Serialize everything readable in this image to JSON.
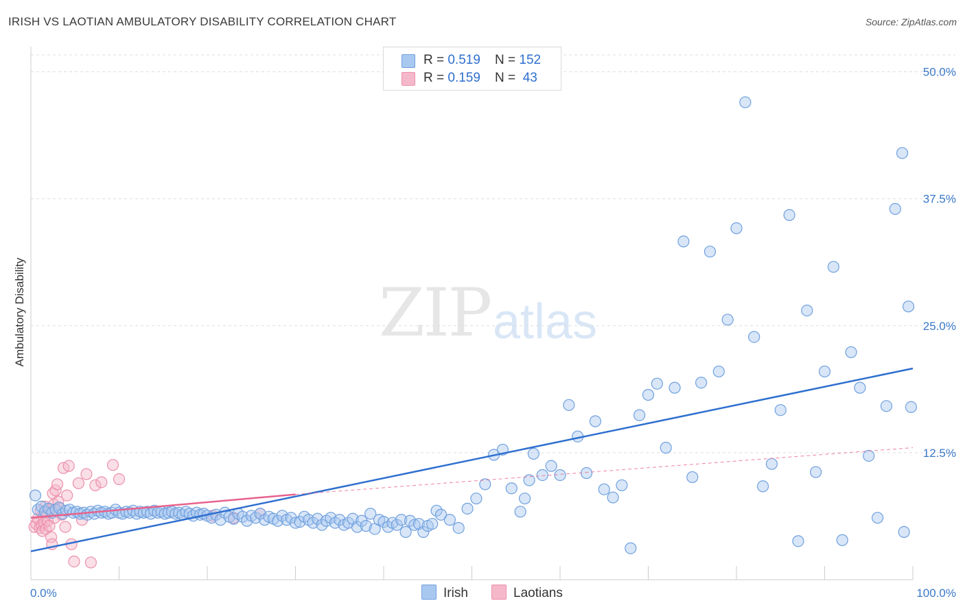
{
  "title": "IRISH VS LAOTIAN AMBULATORY DISABILITY CORRELATION CHART",
  "source": "Source: ZipAtlas.com",
  "watermark": {
    "zip": "ZIP",
    "atlas": "atlas"
  },
  "legend": {
    "rows": [
      {
        "r_label": "R = ",
        "r_value": "0.519",
        "n_label": "N = ",
        "n_value": "152",
        "color": "#a9c8f0"
      },
      {
        "r_label": "R = ",
        "r_value": "0.159",
        "n_label": "N = ",
        "n_value": " 43",
        "color": "#f5b8ca"
      }
    ]
  },
  "bottom_legend": {
    "irish": "Irish",
    "laotians": "Laotians"
  },
  "chart_data": {
    "type": "scatter",
    "title": "IRISH VS LAOTIAN AMBULATORY DISABILITY CORRELATION CHART",
    "xlabel": "",
    "ylabel": "Ambulatory Disability",
    "xlim": [
      0,
      100
    ],
    "ylim": [
      0,
      52
    ],
    "x_tick_labels": [
      "0.0%",
      "100.0%"
    ],
    "y_ticks": [
      12.5,
      25.0,
      37.5,
      50.0
    ],
    "y_tick_labels": [
      "12.5%",
      "25.0%",
      "37.5%",
      "50.0%"
    ],
    "grid": true,
    "series": [
      {
        "name": "Irish",
        "color": "#a9c8f0",
        "stroke": "#6fa0de",
        "trend": {
          "x": [
            0,
            100
          ],
          "y": [
            2.8,
            20.8
          ],
          "color": "#2e6fcf"
        },
        "points": [
          [
            0.5,
            8.3
          ],
          [
            0.8,
            6.9
          ],
          [
            1.2,
            7.2
          ],
          [
            1.6,
            6.7
          ],
          [
            2.0,
            7.0
          ],
          [
            2.4,
            6.6
          ],
          [
            2.8,
            6.9
          ],
          [
            3.2,
            7.1
          ],
          [
            3.6,
            6.5
          ],
          [
            4.0,
            6.8
          ],
          [
            4.4,
            6.9
          ],
          [
            4.8,
            6.6
          ],
          [
            5.2,
            6.7
          ],
          [
            5.6,
            6.5
          ],
          [
            6.0,
            6.6
          ],
          [
            6.4,
            6.4
          ],
          [
            6.8,
            6.7
          ],
          [
            7.2,
            6.5
          ],
          [
            7.6,
            6.8
          ],
          [
            8.0,
            6.6
          ],
          [
            8.4,
            6.7
          ],
          [
            8.8,
            6.5
          ],
          [
            9.2,
            6.6
          ],
          [
            9.6,
            6.9
          ],
          [
            10.0,
            6.6
          ],
          [
            10.4,
            6.5
          ],
          [
            10.8,
            6.7
          ],
          [
            11.2,
            6.6
          ],
          [
            11.6,
            6.8
          ],
          [
            12.0,
            6.5
          ],
          [
            12.4,
            6.7
          ],
          [
            12.8,
            6.6
          ],
          [
            13.2,
            6.7
          ],
          [
            13.6,
            6.5
          ],
          [
            14.0,
            6.8
          ],
          [
            14.4,
            6.6
          ],
          [
            14.8,
            6.7
          ],
          [
            15.2,
            6.5
          ],
          [
            15.6,
            6.6
          ],
          [
            16.0,
            6.7
          ],
          [
            16.4,
            6.5
          ],
          [
            16.8,
            6.6
          ],
          [
            17.2,
            6.4
          ],
          [
            17.6,
            6.7
          ],
          [
            18.0,
            6.5
          ],
          [
            18.4,
            6.3
          ],
          [
            18.8,
            6.6
          ],
          [
            19.2,
            6.4
          ],
          [
            19.6,
            6.5
          ],
          [
            20.0,
            6.3
          ],
          [
            20.5,
            6.1
          ],
          [
            21.0,
            6.4
          ],
          [
            21.5,
            5.9
          ],
          [
            22.0,
            6.6
          ],
          [
            22.5,
            6.2
          ],
          [
            23.0,
            6.0
          ],
          [
            23.5,
            6.5
          ],
          [
            24.0,
            6.2
          ],
          [
            24.5,
            5.8
          ],
          [
            25.0,
            6.3
          ],
          [
            25.5,
            6.1
          ],
          [
            26.0,
            6.5
          ],
          [
            26.5,
            5.9
          ],
          [
            27.0,
            6.2
          ],
          [
            27.5,
            6.0
          ],
          [
            28.0,
            5.8
          ],
          [
            28.5,
            6.3
          ],
          [
            29.0,
            5.9
          ],
          [
            29.5,
            6.1
          ],
          [
            30.0,
            5.6
          ],
          [
            30.5,
            5.7
          ],
          [
            31.0,
            6.2
          ],
          [
            31.5,
            5.9
          ],
          [
            32.0,
            5.6
          ],
          [
            32.5,
            6.0
          ],
          [
            33.0,
            5.4
          ],
          [
            33.5,
            5.8
          ],
          [
            34.0,
            6.1
          ],
          [
            34.5,
            5.6
          ],
          [
            35.0,
            5.9
          ],
          [
            35.5,
            5.4
          ],
          [
            36.0,
            5.6
          ],
          [
            36.5,
            6.0
          ],
          [
            37.0,
            5.2
          ],
          [
            37.5,
            5.8
          ],
          [
            38.0,
            5.3
          ],
          [
            38.5,
            6.5
          ],
          [
            39.0,
            5.0
          ],
          [
            39.5,
            5.9
          ],
          [
            40.0,
            5.7
          ],
          [
            40.5,
            5.2
          ],
          [
            41.0,
            5.6
          ],
          [
            41.5,
            5.4
          ],
          [
            42.0,
            5.9
          ],
          [
            42.5,
            4.7
          ],
          [
            43.0,
            5.8
          ],
          [
            43.5,
            5.4
          ],
          [
            44.0,
            5.5
          ],
          [
            44.5,
            4.7
          ],
          [
            45.0,
            5.3
          ],
          [
            45.5,
            5.5
          ],
          [
            46.0,
            6.8
          ],
          [
            46.5,
            6.4
          ],
          [
            47.5,
            5.9
          ],
          [
            48.5,
            5.1
          ],
          [
            49.5,
            7.0
          ],
          [
            50.5,
            8.0
          ],
          [
            51.5,
            9.4
          ],
          [
            52.5,
            12.3
          ],
          [
            53.5,
            12.8
          ],
          [
            54.5,
            9.0
          ],
          [
            55.5,
            6.7
          ],
          [
            56.0,
            8.0
          ],
          [
            56.5,
            9.8
          ],
          [
            57.0,
            12.4
          ],
          [
            58.0,
            10.3
          ],
          [
            59.0,
            11.2
          ],
          [
            60.0,
            10.3
          ],
          [
            61.0,
            17.2
          ],
          [
            62.0,
            14.1
          ],
          [
            63.0,
            10.5
          ],
          [
            64.0,
            15.6
          ],
          [
            65.0,
            8.9
          ],
          [
            66.0,
            8.1
          ],
          [
            67.0,
            9.3
          ],
          [
            68.0,
            3.1
          ],
          [
            69.0,
            16.2
          ],
          [
            70.0,
            18.2
          ],
          [
            71.0,
            19.3
          ],
          [
            72.0,
            13.0
          ],
          [
            73.0,
            18.9
          ],
          [
            74.0,
            33.3
          ],
          [
            75.0,
            10.1
          ],
          [
            76.0,
            19.4
          ],
          [
            77.0,
            32.3
          ],
          [
            78.0,
            20.5
          ],
          [
            79.0,
            25.6
          ],
          [
            80.0,
            34.6
          ],
          [
            81.0,
            47.0
          ],
          [
            82.0,
            23.9
          ],
          [
            83.0,
            9.2
          ],
          [
            84.0,
            11.4
          ],
          [
            85.0,
            16.7
          ],
          [
            86.0,
            35.9
          ],
          [
            87.0,
            3.8
          ],
          [
            88.0,
            26.5
          ],
          [
            89.0,
            10.6
          ],
          [
            90.0,
            20.5
          ],
          [
            91.0,
            30.8
          ],
          [
            92.0,
            3.9
          ],
          [
            93.0,
            22.4
          ],
          [
            94.0,
            18.9
          ],
          [
            95.0,
            12.2
          ],
          [
            96.0,
            6.1
          ],
          [
            97.0,
            17.1
          ],
          [
            98.0,
            36.5
          ],
          [
            99.0,
            4.7
          ],
          [
            99.5,
            26.9
          ],
          [
            99.8,
            17.0
          ],
          [
            98.8,
            42.0
          ]
        ]
      },
      {
        "name": "Laotians",
        "color": "#f5b8ca",
        "stroke": "#ec8fab",
        "trend": {
          "x": [
            0,
            30
          ],
          "y": [
            6.1,
            8.4
          ],
          "dashed_ext": [
            100,
            13.0
          ],
          "color": "#e8628c"
        },
        "points": [
          [
            0.4,
            5.2
          ],
          [
            0.6,
            5.5
          ],
          [
            0.8,
            6.0
          ],
          [
            1.0,
            5.1
          ],
          [
            1.1,
            6.8
          ],
          [
            1.2,
            5.4
          ],
          [
            1.3,
            4.8
          ],
          [
            1.4,
            6.3
          ],
          [
            1.5,
            5.6
          ],
          [
            1.6,
            7.2
          ],
          [
            1.7,
            5.0
          ],
          [
            1.8,
            6.6
          ],
          [
            1.9,
            5.8
          ],
          [
            2.0,
            7.0
          ],
          [
            2.1,
            5.3
          ],
          [
            2.2,
            6.9
          ],
          [
            2.3,
            4.2
          ],
          [
            2.4,
            3.5
          ],
          [
            2.5,
            8.5
          ],
          [
            2.6,
            7.4
          ],
          [
            2.7,
            6.1
          ],
          [
            2.8,
            8.8
          ],
          [
            3.0,
            9.4
          ],
          [
            3.1,
            7.7
          ],
          [
            3.3,
            7.0
          ],
          [
            3.5,
            6.4
          ],
          [
            3.7,
            11.0
          ],
          [
            3.9,
            5.2
          ],
          [
            4.1,
            8.3
          ],
          [
            4.3,
            11.2
          ],
          [
            4.6,
            3.5
          ],
          [
            4.9,
            1.8
          ],
          [
            5.4,
            9.5
          ],
          [
            5.8,
            5.9
          ],
          [
            6.3,
            10.4
          ],
          [
            6.8,
            1.7
          ],
          [
            7.3,
            9.3
          ],
          [
            8.0,
            9.6
          ],
          [
            9.3,
            11.3
          ],
          [
            10.0,
            9.9
          ],
          [
            20.6,
            6.3
          ],
          [
            23.0,
            6.1
          ],
          [
            26.0,
            6.5
          ]
        ]
      }
    ]
  }
}
